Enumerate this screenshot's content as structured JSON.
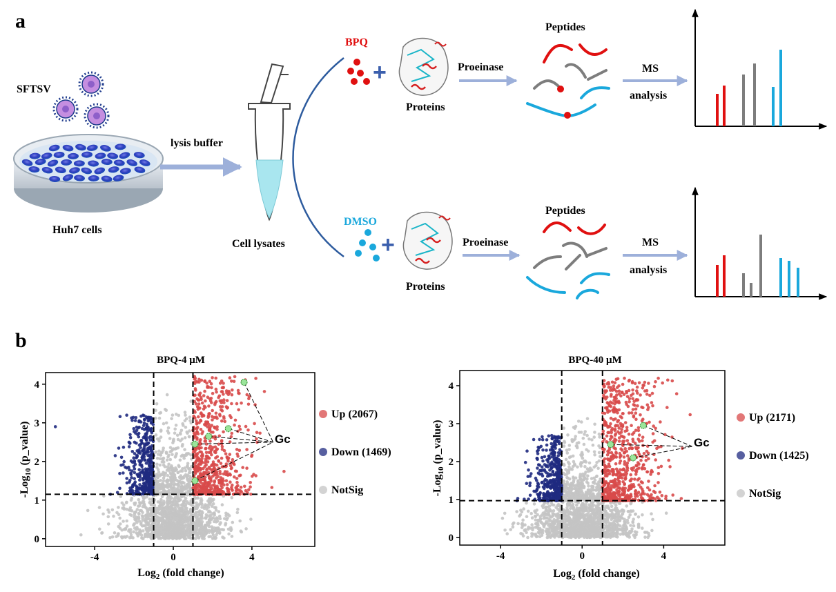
{
  "panel_a": {
    "label": "a",
    "virus_label": "SFTSV",
    "cells_label": "Huh7 cells",
    "lysis_label": "lysis buffer",
    "lysates_label": "Cell lysates",
    "top": {
      "compound": "BPQ",
      "compound_color": "#e01010",
      "proteins": "Proteins",
      "enzyme": "Proeinase",
      "peptides": "Peptides",
      "ms_line1": "MS",
      "ms_line2": "analysis"
    },
    "bottom": {
      "compound": "DMSO",
      "compound_color": "#1aa8dc",
      "proteins": "Proteins",
      "enzyme": "Proeinase",
      "peptides": "Peptides",
      "ms_line1": "MS",
      "ms_line2": "analysis"
    }
  },
  "panel_b": {
    "label": "b"
  },
  "colors": {
    "up": "#d84a4a",
    "down": "#1f2a80",
    "notsig": "#c4c4c4",
    "arrow": "#9db0da",
    "gray_peptide": "#7d7d7d"
  },
  "chart_data": [
    {
      "type": "scatter",
      "title": "BPQ-4 μM",
      "xlabel": "Log2 (fold change)",
      "ylabel": "-Log10 (p_value)",
      "xlim": [
        -6.5,
        7.2
      ],
      "ylim": [
        -0.2,
        4.3
      ],
      "xticks": [
        -4,
        0,
        4
      ],
      "yticks": [
        0,
        1,
        2,
        3,
        4
      ],
      "thresholds": {
        "x": [
          -1,
          1
        ],
        "y": 1.15
      },
      "legend": [
        {
          "name": "Up (2067)",
          "color": "#d84a4a"
        },
        {
          "name": "Down (1469)",
          "color": "#1f2a80"
        },
        {
          "name": "NotSig",
          "color": "#c4c4c4"
        }
      ],
      "annotation": {
        "text": "Gc",
        "x": 5.5,
        "y": 2.5
      },
      "highlighted_points": [
        {
          "x": 3.6,
          "y": 4.05
        },
        {
          "x": 2.8,
          "y": 2.85
        },
        {
          "x": 1.8,
          "y": 2.65
        },
        {
          "x": 1.1,
          "y": 2.45
        },
        {
          "x": 1.1,
          "y": 1.5
        }
      ],
      "groups": {
        "up": {
          "count": 2067,
          "x_range": [
            1,
            5.8
          ],
          "y_range": [
            1.15,
            4.2
          ]
        },
        "down": {
          "count": 1469,
          "x_range": [
            -3.2,
            -1
          ],
          "y_range": [
            1.15,
            3.2
          ]
        },
        "notsig": {
          "x_range": [
            -4.5,
            5
          ],
          "y_range": [
            0,
            1.15
          ]
        }
      }
    },
    {
      "type": "scatter",
      "title": "BPQ-40 μM",
      "xlabel": "Log2 (fold change)",
      "ylabel": "-Log10 (p_value)",
      "xlim": [
        -6,
        7
      ],
      "ylim": [
        -0.2,
        4.4
      ],
      "xticks": [
        -4,
        0,
        4
      ],
      "yticks": [
        0,
        1,
        2,
        3,
        4
      ],
      "thresholds": {
        "x": [
          -1,
          1
        ],
        "y": 0.97
      },
      "legend": [
        {
          "name": "Up (2171)",
          "color": "#d84a4a"
        },
        {
          "name": "Down (1425)",
          "color": "#1f2a80"
        },
        {
          "name": "NotSig",
          "color": "#c4c4c4"
        }
      ],
      "annotation": {
        "text": "Gc",
        "x": 5.8,
        "y": 2.4
      },
      "highlighted_points": [
        {
          "x": 3.0,
          "y": 2.95
        },
        {
          "x": 1.4,
          "y": 2.45
        },
        {
          "x": 2.5,
          "y": 2.1
        }
      ],
      "groups": {
        "up": {
          "count": 2171,
          "x_range": [
            1,
            5.5
          ],
          "y_range": [
            0.97,
            4.2
          ]
        },
        "down": {
          "count": 1425,
          "x_range": [
            -3.2,
            -1
          ],
          "y_range": [
            0.97,
            2.7
          ]
        },
        "notsig": {
          "x_range": [
            -4.5,
            5
          ],
          "y_range": [
            0,
            0.97
          ]
        }
      }
    }
  ]
}
